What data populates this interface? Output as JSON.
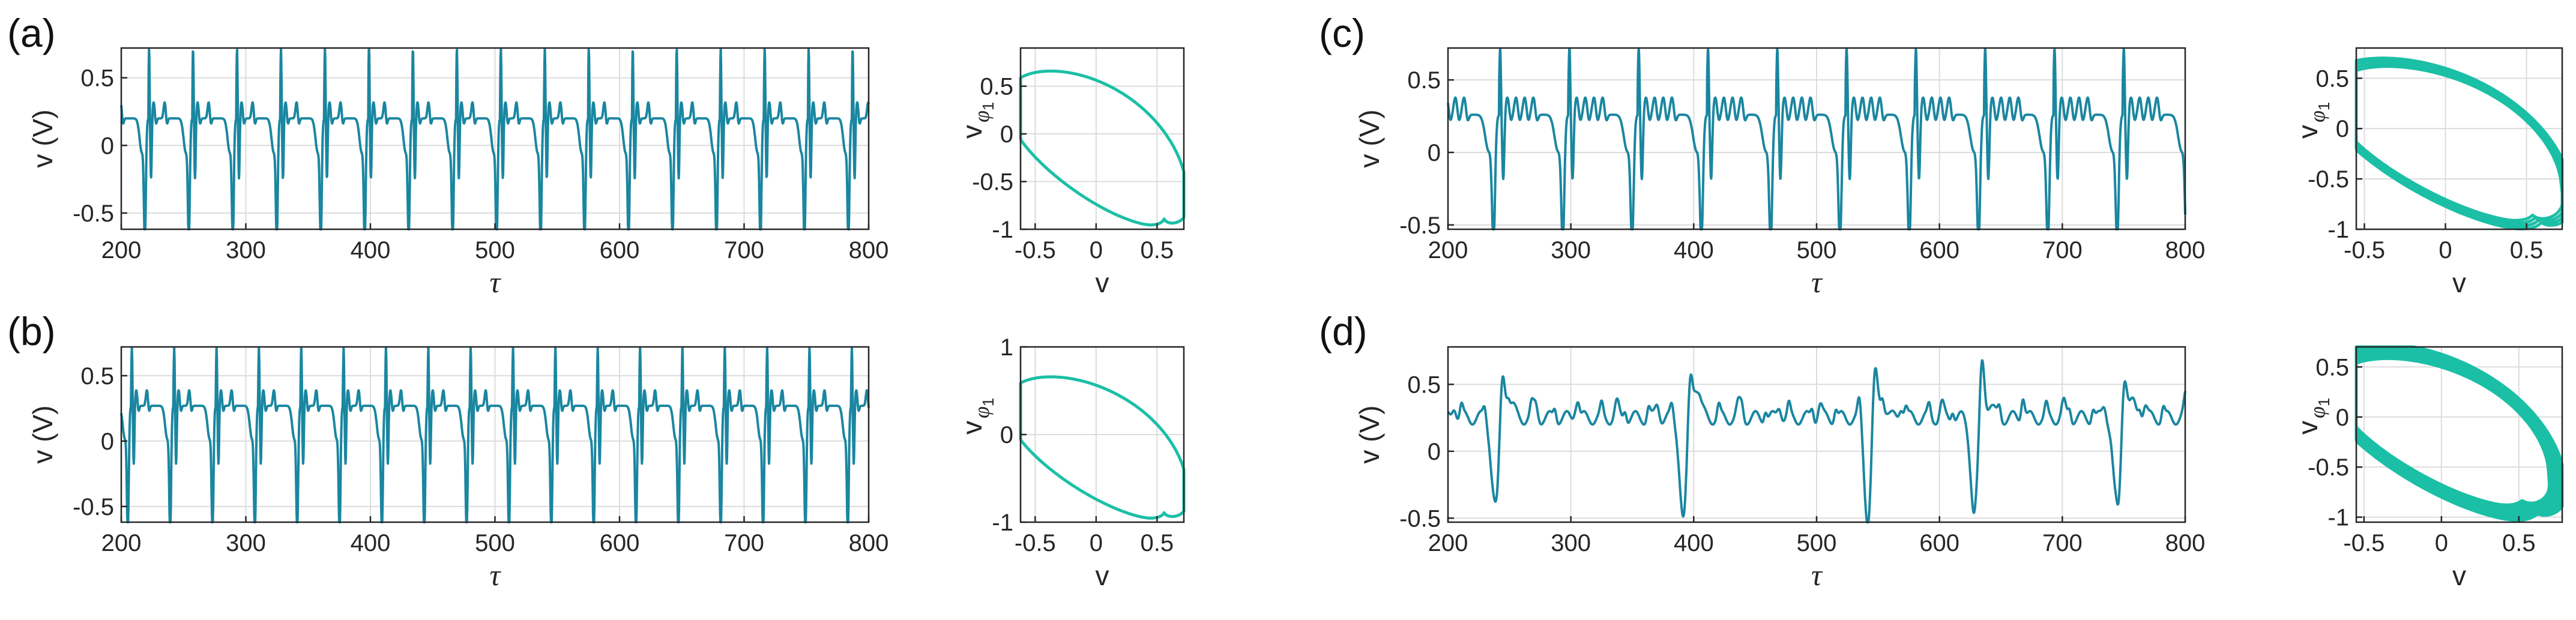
{
  "chart_data": [
    {
      "panel": "(a)",
      "kind": "time",
      "type": "line",
      "xlabel": "τ",
      "ylabel": "v (V)",
      "xlim": [
        200,
        800
      ],
      "ylim": [
        -0.62,
        0.72
      ],
      "xticks": [
        200,
        300,
        400,
        500,
        600,
        700,
        800
      ],
      "yticks": [
        -0.5,
        0,
        0.5
      ],
      "ytick_labels": [
        "-0.5",
        "0",
        "0.5"
      ],
      "color": "#1a86a0",
      "series": {
        "period": 35.3,
        "phase": 10,
        "min": -0.62,
        "max": 0.72,
        "ripples": 2,
        "rest": 0.2
      }
    },
    {
      "panel": "(a)",
      "kind": "phase",
      "type": "line",
      "xlabel": "v",
      "ylabel": "v",
      "ylabel_sub": "φ",
      "ylabel_sub2": "1",
      "xlim": [
        -0.62,
        0.72
      ],
      "ylim": [
        -1.0,
        0.9
      ],
      "xticks": [
        -0.5,
        0,
        0.5
      ],
      "xtick_labels": [
        "-0.5",
        "0",
        "0.5"
      ],
      "yticks": [
        -1,
        -0.5,
        0,
        0.5
      ],
      "ytick_labels": [
        "-1",
        "-0.5",
        "0",
        "0.5"
      ],
      "color": "#1abfa5",
      "loops": 1,
      "spread": 0.0,
      "inner": 0.28
    },
    {
      "panel": "(b)",
      "kind": "time",
      "type": "line",
      "xlabel": "τ",
      "ylabel": "v (V)",
      "xlim": [
        200,
        800
      ],
      "ylim": [
        -0.62,
        0.72
      ],
      "xticks": [
        200,
        300,
        400,
        500,
        600,
        700,
        800
      ],
      "yticks": [
        -0.5,
        0,
        0.5
      ],
      "ytick_labels": [
        "-0.5",
        "0",
        "0.5"
      ],
      "color": "#1a86a0",
      "series": {
        "period": 34.0,
        "phase": 4,
        "min": -0.62,
        "max": 0.72,
        "ripples": 2,
        "rest": 0.27
      }
    },
    {
      "panel": "(b)",
      "kind": "phase",
      "type": "line",
      "xlabel": "v",
      "ylabel": "v",
      "ylabel_sub": "φ",
      "ylabel_sub2": "1",
      "xlim": [
        -0.62,
        0.72
      ],
      "ylim": [
        -1.0,
        1.0
      ],
      "xticks": [
        -0.5,
        0,
        0.5
      ],
      "xtick_labels": [
        "-0.5",
        "0",
        "0.5"
      ],
      "yticks": [
        -1,
        0,
        1
      ],
      "ytick_labels": [
        "-1",
        "0",
        "1"
      ],
      "color": "#1abfa5",
      "loops": 1,
      "spread": 0.0,
      "inner": 0.28
    },
    {
      "panel": "(c)",
      "kind": "time",
      "type": "line",
      "xlabel": "τ",
      "ylabel": "v (V)",
      "xlim": [
        200,
        800
      ],
      "ylim": [
        -0.53,
        0.72
      ],
      "xticks": [
        200,
        300,
        400,
        500,
        600,
        700,
        800
      ],
      "yticks": [
        -0.5,
        0,
        0.5
      ],
      "ytick_labels": [
        "-0.5",
        "0",
        "0.5"
      ],
      "color": "#1a86a0",
      "series": {
        "period": 56.4,
        "phase": 16,
        "min": -0.53,
        "max": 0.72,
        "ripples": 4,
        "rest": 0.26
      }
    },
    {
      "panel": "(c)",
      "kind": "phase",
      "type": "line",
      "xlabel": "v",
      "ylabel": "v",
      "ylabel_sub": "φ",
      "ylabel_sub2": "1",
      "xlim": [
        -0.55,
        0.72
      ],
      "ylim": [
        -1.0,
        0.8
      ],
      "xticks": [
        -0.5,
        0,
        0.5
      ],
      "xtick_labels": [
        "-0.5",
        "0",
        "0.5"
      ],
      "yticks": [
        -1,
        -0.5,
        0,
        0.5
      ],
      "ytick_labels": [
        "-1",
        "-0.5",
        "0",
        "0.5"
      ],
      "color": "#1abfa5",
      "loops": 4,
      "spread": 0.05,
      "inner": 0.24
    },
    {
      "panel": "(d)",
      "kind": "time",
      "type": "line",
      "xlabel": "τ",
      "ylabel": "v (V)",
      "xlim": [
        200,
        800
      ],
      "ylim": [
        -0.53,
        0.78
      ],
      "xticks": [
        200,
        300,
        400,
        500,
        600,
        700,
        800
      ],
      "yticks": [
        -0.5,
        0,
        0.5
      ],
      "ytick_labels": [
        "-0.5",
        "0",
        "0.5"
      ],
      "color": "#1a86a0",
      "series": {
        "spikes": [
          242,
          395,
          545,
          632,
          748
        ],
        "min": -0.53,
        "max": 0.74,
        "rest": 0.25
      }
    },
    {
      "panel": "(d)",
      "kind": "phase",
      "type": "line",
      "xlabel": "v",
      "ylabel": "v",
      "ylabel_sub": "φ",
      "ylabel_sub2": "1",
      "xlim": [
        -0.55,
        0.78
      ],
      "ylim": [
        -1.05,
        0.7
      ],
      "xticks": [
        -0.5,
        0,
        0.5
      ],
      "xtick_labels": [
        "-0.5",
        "0",
        "0.5"
      ],
      "yticks": [
        -1,
        -0.5,
        0,
        0.5
      ],
      "ytick_labels": [
        "-1",
        "-0.5",
        "0",
        "0.5"
      ],
      "color": "#1abfa5",
      "loops": 10,
      "spread": 0.09,
      "inner": 0.2
    }
  ]
}
